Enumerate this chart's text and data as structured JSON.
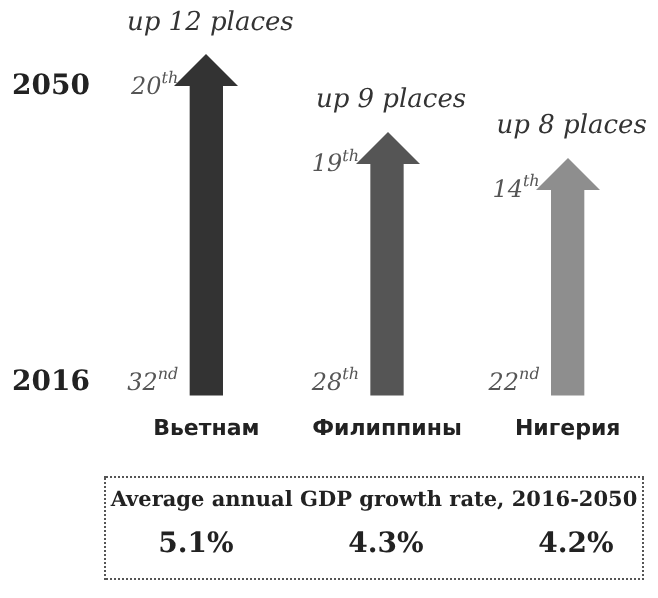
{
  "chart_data": {
    "type": "bar",
    "tick_labels": "x",
    "categories": [
      "Вьетнам",
      "Филиппины",
      "Нигерия"
    ],
    "values": [
      12,
      9,
      8
    ],
    "colors": [
      "#333333",
      "#555555",
      "#8e8e8e"
    ],
    "value_labels": [
      "up 12 places",
      "up 9 places",
      "up 8 places"
    ],
    "annotations": [
      "2050",
      "2016",
      {
        "text": "20$^{th}$",
        "x": "Вьетнам",
        "y": 12
      },
      {
        "text": "32$^{nd}$",
        "x": "Вьетнам",
        "y": 0
      },
      {
        "text": "19$^{th}$",
        "x": "Филиппины",
        "y": 9
      },
      {
        "text": "28$^{th}$",
        "x": "Филиппины",
        "y": 0
      },
      {
        "text": "14$^{th}$",
        "x": "Нигерия",
        "y": 8
      },
      {
        "text": "22$^{nd}$",
        "x": "Нигерия",
        "y": 0
      },
      "Average annual GDP growth rate, 2016-2050",
      "5.1%",
      "4.3%",
      "4.2%"
    ],
    "grid": false,
    "legend": false
  }
}
